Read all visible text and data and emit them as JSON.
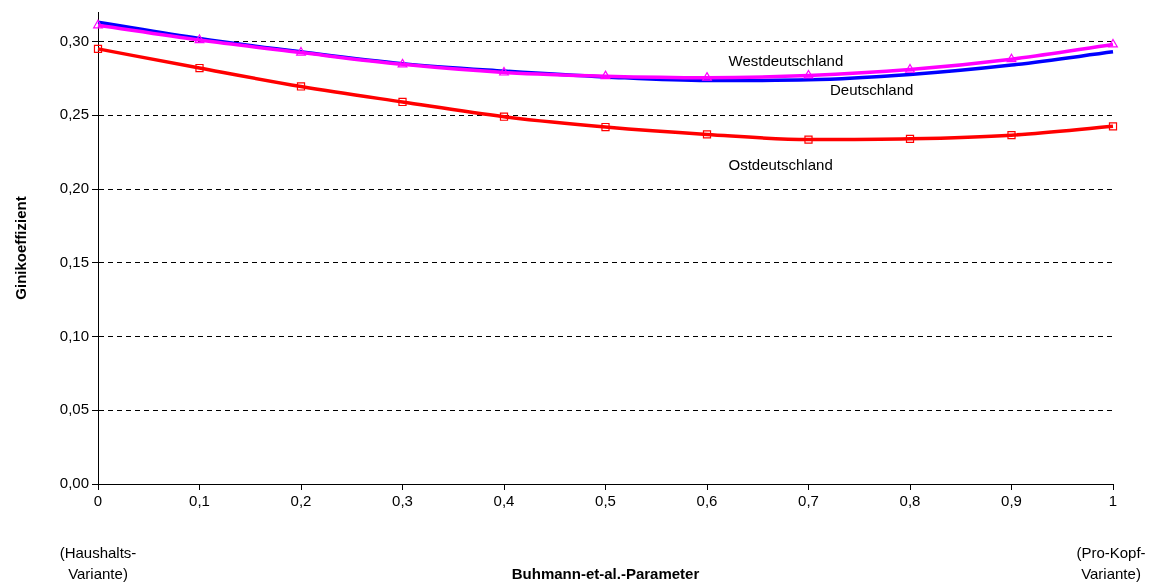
{
  "chart_data": {
    "type": "line",
    "xlabel": "Buhmann-et-al.-Parameter",
    "ylabel": "Ginikoeffizient",
    "x": [
      0,
      0.1,
      0.2,
      0.3,
      0.4,
      0.5,
      0.6,
      0.7,
      0.8,
      0.9,
      1
    ],
    "series": [
      {
        "name": "Deutschland",
        "color": "#0000ff",
        "marker": "none",
        "values": [
          0.313,
          0.302,
          0.293,
          0.285,
          0.28,
          0.276,
          0.2735,
          0.274,
          0.2776,
          0.284,
          0.293
        ]
      },
      {
        "name": "Westdeutschland",
        "color": "#ff00ff",
        "marker": "triangle",
        "values": [
          0.311,
          0.301,
          0.2925,
          0.2845,
          0.279,
          0.2765,
          0.2755,
          0.277,
          0.281,
          0.288,
          0.298
        ]
      },
      {
        "name": "Ostdeutschland",
        "color": "#ff0000",
        "marker": "square",
        "values": [
          0.295,
          0.282,
          0.2695,
          0.259,
          0.249,
          0.242,
          0.237,
          0.2335,
          0.234,
          0.2365,
          0.2425
        ]
      }
    ],
    "xlim": [
      0,
      1
    ],
    "xticks": [
      {
        "value": 0,
        "label": "0"
      },
      {
        "value": 0.1,
        "label": "0,1"
      },
      {
        "value": 0.2,
        "label": "0,2"
      },
      {
        "value": 0.3,
        "label": "0,3"
      },
      {
        "value": 0.4,
        "label": "0,4"
      },
      {
        "value": 0.5,
        "label": "0,5"
      },
      {
        "value": 0.6,
        "label": "0,6"
      },
      {
        "value": 0.7,
        "label": "0,7"
      },
      {
        "value": 0.8,
        "label": "0,8"
      },
      {
        "value": 0.9,
        "label": "0,9"
      },
      {
        "value": 1,
        "label": "1"
      }
    ],
    "ylim": [
      0,
      0.32
    ],
    "yticks": [
      {
        "value": 0,
        "label": "0,00"
      },
      {
        "value": 0.05,
        "label": "0,05"
      },
      {
        "value": 0.1,
        "label": "0,10"
      },
      {
        "value": 0.15,
        "label": "0,15"
      },
      {
        "value": 0.2,
        "label": "0,20"
      },
      {
        "value": 0.25,
        "label": "0,25"
      },
      {
        "value": 0.3,
        "label": "0,30"
      }
    ],
    "grid": "y",
    "legend": false,
    "annotations": [
      "(Haushalts-\nVariante)",
      "(Pro-Kopf-\nVariante)"
    ]
  }
}
